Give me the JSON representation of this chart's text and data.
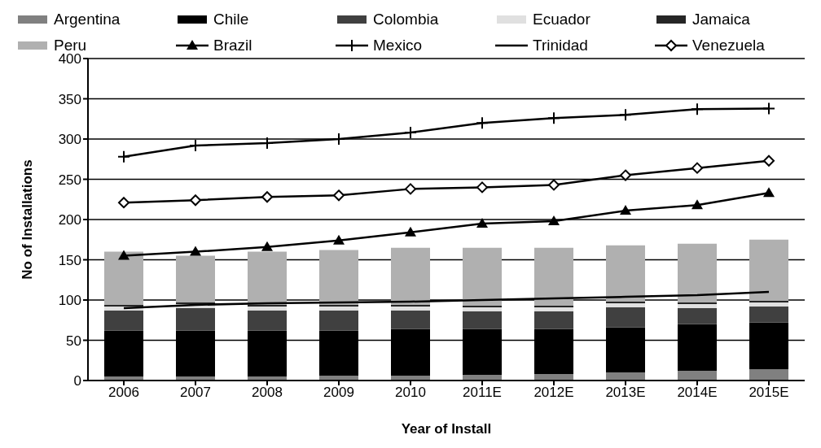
{
  "chart_data": {
    "type": "bar",
    "stacked": true,
    "xlabel": "Year of Install",
    "ylabel": "No of Installations",
    "categories": [
      "2006",
      "2007",
      "2008",
      "2009",
      "2010",
      "2011E",
      "2012E",
      "2013E",
      "2014E",
      "2015E"
    ],
    "series": [
      {
        "name": "Argentina",
        "color": "#808080",
        "values": [
          5,
          5,
          5,
          6,
          6,
          7,
          8,
          10,
          12,
          14
        ]
      },
      {
        "name": "Chile",
        "color": "#000000",
        "values": [
          57,
          57,
          57,
          56,
          58,
          57,
          56,
          56,
          58,
          58
        ]
      },
      {
        "name": "Colombia",
        "color": "#404040",
        "values": [
          25,
          28,
          25,
          25,
          23,
          22,
          22,
          25,
          20,
          20
        ]
      },
      {
        "name": "Ecuador",
        "color": "#e0e0e0",
        "values": [
          5,
          5,
          5,
          5,
          5,
          5,
          5,
          5,
          5,
          5
        ]
      },
      {
        "name": "Jamaica",
        "color": "#262626",
        "values": [
          2,
          2,
          2,
          2,
          2,
          2,
          2,
          2,
          2,
          2
        ]
      },
      {
        "name": "Peru",
        "color": "#b0b0b0",
        "values": [
          66,
          58,
          66,
          68,
          71,
          72,
          72,
          70,
          73,
          76
        ]
      },
      {
        "name": "Brazil",
        "type": "line",
        "marker": "triangle",
        "color": "#000000",
        "values": [
          155,
          160,
          166,
          174,
          184,
          195,
          198,
          211,
          218,
          233
        ]
      },
      {
        "name": "Mexico",
        "type": "line",
        "marker": "cross",
        "color": "#000000",
        "values": [
          278,
          292,
          295,
          300,
          308,
          320,
          326,
          330,
          337,
          338
        ]
      },
      {
        "name": "Trinidad",
        "type": "line",
        "marker": "none",
        "color": "#000000",
        "values": [
          90,
          94,
          96,
          97,
          98,
          100,
          102,
          104,
          106,
          110
        ]
      },
      {
        "name": "Venezuela",
        "type": "line",
        "marker": "diamond",
        "color": "#000000",
        "values": [
          221,
          224,
          228,
          230,
          238,
          240,
          243,
          255,
          264,
          273
        ]
      }
    ],
    "ylim": [
      0,
      400
    ],
    "yticks": [
      0,
      50,
      100,
      150,
      200,
      250,
      300,
      350,
      400
    ],
    "grid": "y",
    "legend": "top",
    "line_style": "solid"
  }
}
